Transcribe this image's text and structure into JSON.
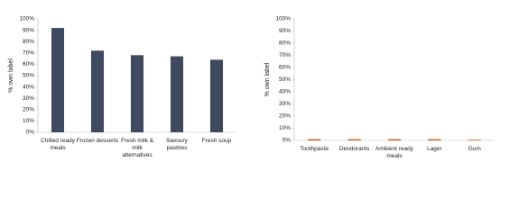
{
  "chart_data": [
    {
      "type": "bar",
      "y_label": "% own label",
      "categories": [
        "Chilled ready meals",
        "Frozen desserts",
        "Fresh milk & milk alternatives",
        "Savoury pastries",
        "Fresh soup"
      ],
      "values": [
        92,
        72,
        68,
        67,
        64
      ],
      "color": "#404a5f",
      "ylim": [
        0,
        100
      ],
      "yticks": [
        {
          "value": 0,
          "label": "0%"
        },
        {
          "value": 10,
          "label": "10%"
        },
        {
          "value": 20,
          "label": "20%"
        },
        {
          "value": 30,
          "label": "30%"
        },
        {
          "value": 40,
          "label": "40%"
        },
        {
          "value": 50,
          "label": "50%"
        },
        {
          "value": 60,
          "label": "60%"
        },
        {
          "value": 70,
          "label": "70%"
        },
        {
          "value": 80,
          "label": "80%"
        },
        {
          "value": 90,
          "label": "90%"
        },
        {
          "value": 100,
          "label": "100%"
        }
      ]
    },
    {
      "type": "bar",
      "y_label": "% own label",
      "categories": [
        "Toothpaste",
        "Deodorants",
        "Ambient ready meals",
        "Lager",
        "Gum"
      ],
      "values": [
        1,
        1,
        1,
        1,
        0.5
      ],
      "color": "#c55a11",
      "ylim": [
        0,
        100
      ],
      "yticks": [
        {
          "value": 0,
          "label": "0%"
        },
        {
          "value": 10,
          "label": "10%"
        },
        {
          "value": 20,
          "label": "20%"
        },
        {
          "value": 30,
          "label": "30%"
        },
        {
          "value": 40,
          "label": "40%"
        },
        {
          "value": 50,
          "label": "50%"
        },
        {
          "value": 60,
          "label": "60%"
        },
        {
          "value": 70,
          "label": "70%"
        },
        {
          "value": 80,
          "label": "80%"
        },
        {
          "value": 90,
          "label": "90%"
        },
        {
          "value": 100,
          "label": "100%"
        }
      ]
    }
  ]
}
